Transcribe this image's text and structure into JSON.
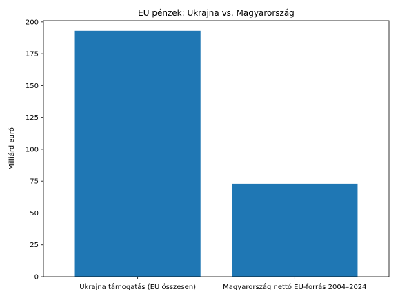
{
  "chart_data": {
    "type": "bar",
    "title": "EU pénzek: Ukrajna vs. Magyarország",
    "xlabel": "",
    "ylabel": "Milliárd euró",
    "categories": [
      "Ukrajna támogatás (EU összesen)",
      "Magyarország nettó EU-forrás 2004–2024"
    ],
    "values": [
      193,
      73
    ],
    "ylim": [
      0,
      201
    ],
    "yticks": [
      0,
      25,
      50,
      75,
      100,
      125,
      150,
      175,
      200
    ],
    "grid": false,
    "bar_color": "#1f77b4"
  }
}
